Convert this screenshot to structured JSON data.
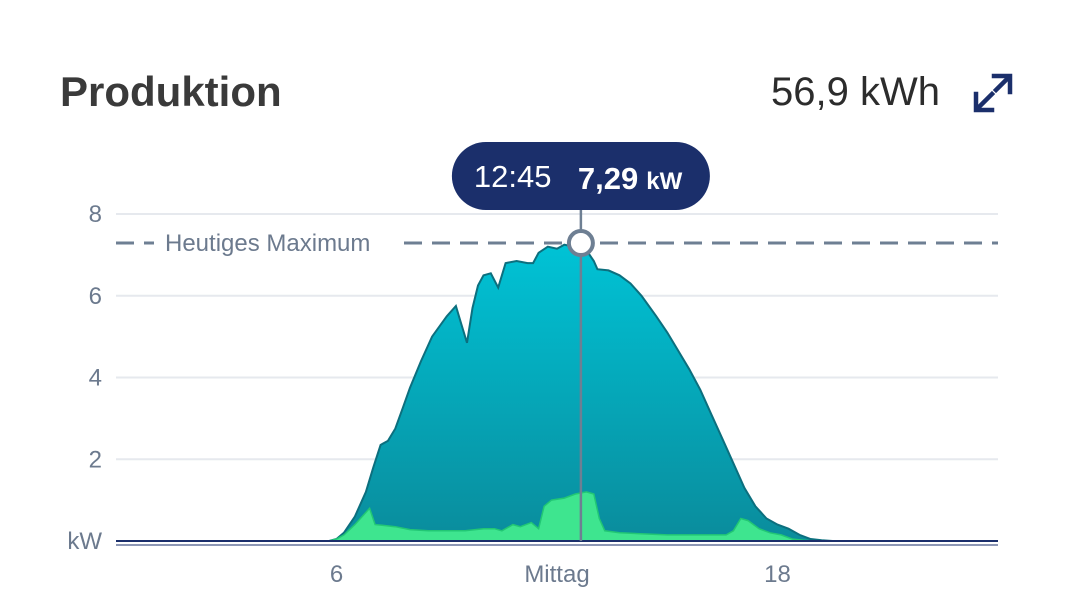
{
  "header": {
    "title": "Produktion",
    "total": "56,9 kWh",
    "expand_icon": "expand-icon"
  },
  "tooltip": {
    "time": "12:45",
    "value": "7,29",
    "unit": "kW"
  },
  "max_label": "Heutiges Maximum",
  "colors": {
    "production_top": "#00b8cc",
    "production_bottom": "#0a8fa0",
    "production_line": "#0c6f7e",
    "consumption": "#3ee58f",
    "tooltip_bg": "#1b2f6b",
    "max_line": "#6e7f93"
  },
  "chart_data": {
    "type": "area",
    "xlabel": "",
    "ylabel": "kW",
    "xlim": [
      0,
      24
    ],
    "ylim": [
      0,
      8
    ],
    "x_ticks": [
      {
        "value": 6,
        "label": "6"
      },
      {
        "value": 12,
        "label": "Mittag"
      },
      {
        "value": 18,
        "label": "18"
      }
    ],
    "y_ticks": [
      {
        "value": 2,
        "label": "2"
      },
      {
        "value": 4,
        "label": "4"
      },
      {
        "value": 6,
        "label": "6"
      },
      {
        "value": 8,
        "label": "8"
      }
    ],
    "y_unit_label": "kW",
    "max_value": 7.29,
    "series": [
      {
        "values": [
          [
            5.8,
            0
          ],
          [
            6.0,
            0.05
          ],
          [
            6.2,
            0.2
          ],
          [
            6.5,
            0.6
          ],
          [
            6.8,
            1.2
          ],
          [
            7.0,
            1.8
          ],
          [
            7.2,
            2.35
          ],
          [
            7.4,
            2.45
          ],
          [
            7.6,
            2.75
          ],
          [
            7.8,
            3.25
          ],
          [
            8.0,
            3.75
          ],
          [
            8.3,
            4.4
          ],
          [
            8.6,
            5.0
          ],
          [
            9.0,
            5.5
          ],
          [
            9.25,
            5.75
          ],
          [
            9.4,
            5.3
          ],
          [
            9.55,
            4.85
          ],
          [
            9.7,
            5.7
          ],
          [
            9.85,
            6.25
          ],
          [
            10.0,
            6.5
          ],
          [
            10.2,
            6.55
          ],
          [
            10.4,
            6.2
          ],
          [
            10.6,
            6.8
          ],
          [
            10.9,
            6.85
          ],
          [
            11.2,
            6.8
          ],
          [
            11.35,
            6.8
          ],
          [
            11.5,
            7.05
          ],
          [
            11.75,
            7.2
          ],
          [
            12.0,
            7.15
          ],
          [
            12.2,
            7.25
          ],
          [
            12.45,
            7.2
          ],
          [
            12.65,
            7.29
          ],
          [
            12.85,
            7.05
          ],
          [
            13.0,
            6.85
          ],
          [
            13.1,
            6.65
          ],
          [
            13.4,
            6.62
          ],
          [
            13.7,
            6.5
          ],
          [
            14.0,
            6.3
          ],
          [
            14.3,
            6.0
          ],
          [
            14.7,
            5.5
          ],
          [
            15.0,
            5.1
          ],
          [
            15.3,
            4.65
          ],
          [
            15.6,
            4.2
          ],
          [
            15.9,
            3.7
          ],
          [
            16.2,
            3.1
          ],
          [
            16.5,
            2.5
          ],
          [
            16.8,
            1.9
          ],
          [
            17.1,
            1.3
          ],
          [
            17.4,
            0.85
          ],
          [
            17.7,
            0.55
          ],
          [
            18.0,
            0.4
          ],
          [
            18.3,
            0.3
          ],
          [
            18.6,
            0.15
          ],
          [
            18.9,
            0.05
          ],
          [
            19.2,
            0.02
          ],
          [
            19.5,
            0
          ]
        ]
      },
      {
        "values": [
          [
            5.8,
            0
          ],
          [
            6.0,
            0.05
          ],
          [
            6.2,
            0.15
          ],
          [
            6.5,
            0.4
          ],
          [
            6.75,
            0.65
          ],
          [
            6.9,
            0.8
          ],
          [
            7.05,
            0.4
          ],
          [
            7.3,
            0.38
          ],
          [
            7.6,
            0.35
          ],
          [
            8.0,
            0.28
          ],
          [
            8.5,
            0.25
          ],
          [
            9.0,
            0.25
          ],
          [
            9.5,
            0.25
          ],
          [
            10.0,
            0.3
          ],
          [
            10.3,
            0.3
          ],
          [
            10.5,
            0.25
          ],
          [
            10.8,
            0.4
          ],
          [
            11.0,
            0.35
          ],
          [
            11.3,
            0.45
          ],
          [
            11.5,
            0.3
          ],
          [
            11.65,
            0.85
          ],
          [
            11.85,
            1.0
          ],
          [
            12.2,
            1.05
          ],
          [
            12.5,
            1.15
          ],
          [
            12.8,
            1.2
          ],
          [
            13.0,
            1.15
          ],
          [
            13.15,
            0.55
          ],
          [
            13.3,
            0.25
          ],
          [
            13.7,
            0.2
          ],
          [
            14.2,
            0.18
          ],
          [
            15.0,
            0.15
          ],
          [
            16.0,
            0.15
          ],
          [
            16.6,
            0.15
          ],
          [
            16.8,
            0.25
          ],
          [
            17.0,
            0.55
          ],
          [
            17.2,
            0.5
          ],
          [
            17.5,
            0.3
          ],
          [
            17.8,
            0.2
          ],
          [
            18.1,
            0.15
          ],
          [
            18.4,
            0.05
          ],
          [
            18.7,
            0.02
          ],
          [
            19.0,
            0
          ],
          [
            19.5,
            0
          ]
        ]
      }
    ]
  }
}
